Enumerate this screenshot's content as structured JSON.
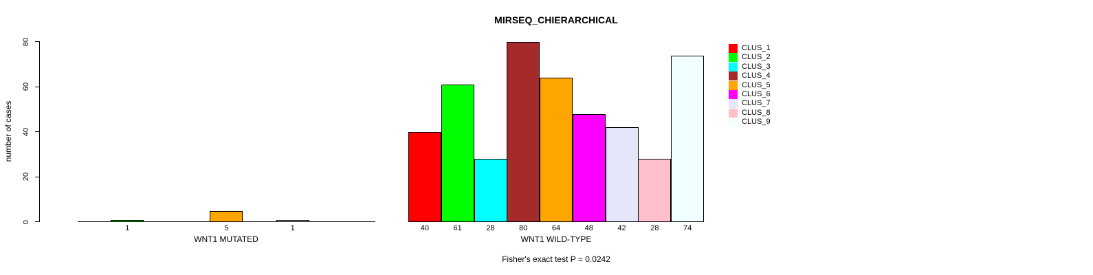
{
  "title": "MIRSEQ_CHIERARCHICAL",
  "footnote": "Fisher's exact test P = 0.0242",
  "chart_data": {
    "type": "bar",
    "title": "MIRSEQ_CHIERARCHICAL",
    "ylabel": "number of cases",
    "ylim": [
      0,
      80
    ],
    "yticks": [
      "0",
      "20",
      "40",
      "60",
      "80"
    ],
    "ytick_values": [
      0,
      20,
      40,
      60,
      80
    ],
    "grid": false,
    "legend_position": "right",
    "clusters": [
      "CLUS_1",
      "CLUS_2",
      "CLUS_3",
      "CLUS_4",
      "CLUS_5",
      "CLUS_6",
      "CLUS_7",
      "CLUS_8",
      "CLUS_9"
    ],
    "colors": [
      "#FF0000",
      "#00FF00",
      "#00FFFF",
      "#A52A2A",
      "#FFA500",
      "#FF00FF",
      "#E6E6FA",
      "#FFC0CB",
      "#F0FFFF"
    ],
    "panels": [
      {
        "xlabel": "WNT1 MUTATED",
        "values": [
          0,
          1,
          0,
          0,
          5,
          0,
          1,
          0,
          0
        ],
        "labels": [
          "",
          "1",
          "",
          "",
          "5",
          "",
          "1",
          "",
          ""
        ]
      },
      {
        "xlabel": "WNT1 WILD-TYPE",
        "values": [
          40,
          61,
          28,
          80,
          64,
          48,
          42,
          28,
          74
        ],
        "labels": [
          "40",
          "61",
          "28",
          "80",
          "64",
          "48",
          "42",
          "28",
          "74"
        ]
      }
    ],
    "annotation": "Fisher's exact test P = 0.0242"
  },
  "legend": {
    "items": [
      {
        "label": "CLUS_1",
        "color": "#FF0000"
      },
      {
        "label": "CLUS_2",
        "color": "#00FF00"
      },
      {
        "label": "CLUS_3",
        "color": "#00FFFF"
      },
      {
        "label": "CLUS_4",
        "color": "#A52A2A"
      },
      {
        "label": "CLUS_5",
        "color": "#FFA500"
      },
      {
        "label": "CLUS_6",
        "color": "#FF00FF"
      },
      {
        "label": "CLUS_7",
        "color": "#E6E6FA"
      },
      {
        "label": "CLUS_8",
        "color": "#FFC0CB"
      },
      {
        "label": "CLUS_9",
        "color": "#F0FFFF"
      }
    ]
  }
}
